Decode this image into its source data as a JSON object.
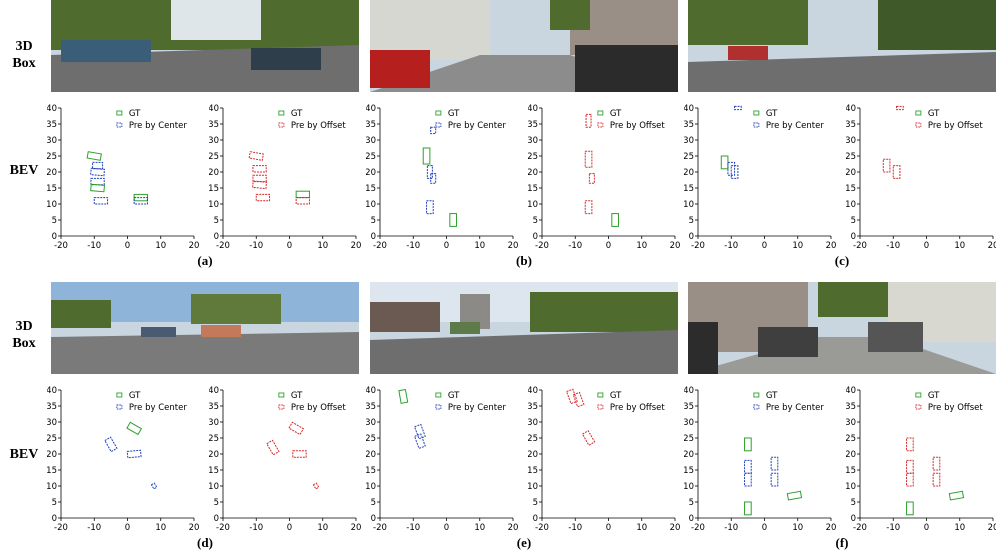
{
  "row_labels": {
    "box_line1": "3D",
    "box_line2": "Box",
    "bev": "BEV"
  },
  "legend": {
    "gt": "GT",
    "center": "Pre by Center",
    "offset": "Pre by Offset"
  },
  "colors": {
    "gt": "#2ca02c",
    "center": "#1f3fbf",
    "offset": "#d62728",
    "sky": "#c9d6df",
    "road": "#6e6e6e",
    "foliage": "#4f6b2e",
    "building": "#9a8f86"
  },
  "axes": {
    "xlim": [
      -20,
      20
    ],
    "ylim": [
      0,
      40
    ],
    "xticks": [
      -20,
      -10,
      0,
      10,
      20
    ],
    "yticks": [
      0,
      5,
      10,
      15,
      20,
      25,
      30,
      35,
      40
    ]
  },
  "panels": [
    {
      "caption": "(a)",
      "scene": "street-trees",
      "left": {
        "legend2": "center",
        "boxes": [
          [
            -10,
            25,
            4,
            2,
            10,
            "gt"
          ],
          [
            -9,
            22,
            3,
            2,
            0,
            "center"
          ],
          [
            -9,
            20,
            4,
            2,
            5,
            "center"
          ],
          [
            -9,
            17,
            4,
            2,
            0,
            "center"
          ],
          [
            -9,
            15,
            4,
            2,
            5,
            "gt"
          ],
          [
            -8,
            11,
            4,
            2,
            0,
            "center"
          ],
          [
            4,
            12,
            4,
            2,
            0,
            "gt"
          ],
          [
            4,
            11,
            4,
            2,
            0,
            "center"
          ]
        ]
      },
      "right": {
        "legend2": "offset",
        "boxes": [
          [
            -10,
            25,
            4,
            2,
            10,
            "offset"
          ],
          [
            -9,
            21,
            4,
            2,
            0,
            "offset"
          ],
          [
            -9,
            18,
            4,
            2,
            0,
            "offset"
          ],
          [
            -9,
            16,
            4,
            2,
            5,
            "offset"
          ],
          [
            -8,
            12,
            4,
            2,
            0,
            "offset"
          ],
          [
            4,
            13,
            4,
            2,
            0,
            "gt"
          ],
          [
            4,
            11,
            4,
            2,
            0,
            "offset"
          ]
        ]
      }
    },
    {
      "caption": "(b)",
      "scene": "residential",
      "left": {
        "legend2": "center",
        "boxes": [
          [
            -4,
            33,
            1.5,
            2,
            0,
            "center"
          ],
          [
            -6,
            25,
            2,
            5,
            0,
            "gt"
          ],
          [
            -5,
            20,
            1.5,
            4,
            0,
            "center"
          ],
          [
            -4,
            18,
            1.5,
            3,
            0,
            "center"
          ],
          [
            -5,
            9,
            2,
            4,
            0,
            "center"
          ],
          [
            2,
            5,
            2,
            4,
            0,
            "gt"
          ]
        ]
      },
      "right": {
        "legend2": "offset",
        "boxes": [
          [
            -6,
            36,
            1.5,
            4,
            0,
            "offset"
          ],
          [
            -6,
            24,
            2,
            5,
            0,
            "offset"
          ],
          [
            -5,
            18,
            1.5,
            3,
            0,
            "offset"
          ],
          [
            -6,
            9,
            2,
            4,
            0,
            "offset"
          ],
          [
            2,
            5,
            2,
            4,
            0,
            "gt"
          ]
        ]
      }
    },
    {
      "caption": "(c)",
      "scene": "boulevard",
      "left": {
        "legend2": "center",
        "boxes": [
          [
            -8,
            40,
            2,
            1,
            0,
            "center"
          ],
          [
            -12,
            23,
            2,
            4,
            0,
            "gt"
          ],
          [
            -10,
            21,
            2,
            4,
            0,
            "center"
          ],
          [
            -9,
            20,
            2,
            4,
            0,
            "center"
          ]
        ]
      },
      "right": {
        "legend2": "offset",
        "boxes": [
          [
            -8,
            40,
            2,
            1,
            0,
            "offset"
          ],
          [
            -12,
            22,
            2,
            4,
            0,
            "offset"
          ],
          [
            -9,
            20,
            2,
            4,
            0,
            "offset"
          ]
        ]
      }
    },
    {
      "caption": "(d)",
      "scene": "intersection",
      "left": {
        "legend2": "center",
        "boxes": [
          [
            -5,
            23,
            2,
            4,
            -30,
            "center"
          ],
          [
            2,
            28,
            2,
            4,
            -60,
            "gt"
          ],
          [
            2,
            20,
            4,
            2,
            -5,
            "center"
          ],
          [
            8,
            10,
            1,
            1.5,
            -30,
            "center"
          ]
        ]
      },
      "right": {
        "legend2": "offset",
        "boxes": [
          [
            -5,
            22,
            2,
            4,
            -30,
            "offset"
          ],
          [
            2,
            28,
            2,
            4,
            -60,
            "offset"
          ],
          [
            3,
            20,
            4,
            2,
            0,
            "offset"
          ],
          [
            8,
            10,
            1,
            1.5,
            -30,
            "offset"
          ]
        ]
      }
    },
    {
      "caption": "(e)",
      "scene": "industrial",
      "left": {
        "legend2": "center",
        "boxes": [
          [
            -13,
            38,
            2,
            4,
            -10,
            "gt"
          ],
          [
            -8,
            27,
            2,
            4,
            -20,
            "center"
          ],
          [
            -8,
            24,
            2,
            4,
            -20,
            "center"
          ]
        ]
      },
      "right": {
        "legend2": "offset",
        "boxes": [
          [
            -11,
            38,
            2,
            4,
            -20,
            "offset"
          ],
          [
            -9,
            37,
            2,
            4,
            -20,
            "offset"
          ],
          [
            -6,
            25,
            2,
            4,
            -30,
            "offset"
          ]
        ]
      }
    },
    {
      "caption": "(f)",
      "scene": "parked-street",
      "left": {
        "legend2": "center",
        "boxes": [
          [
            -5,
            23,
            2,
            4,
            0,
            "gt"
          ],
          [
            -5,
            16,
            2,
            4,
            0,
            "center"
          ],
          [
            -5,
            12,
            2,
            4,
            0,
            "center"
          ],
          [
            3,
            17,
            2,
            4,
            0,
            "center"
          ],
          [
            3,
            12,
            2,
            4,
            0,
            "center"
          ],
          [
            -5,
            3,
            2,
            4,
            0,
            "gt"
          ],
          [
            9,
            7,
            4,
            2,
            -10,
            "gt"
          ]
        ]
      },
      "right": {
        "legend2": "offset",
        "boxes": [
          [
            -5,
            23,
            2,
            4,
            0,
            "offset"
          ],
          [
            -5,
            16,
            2,
            4,
            0,
            "offset"
          ],
          [
            -5,
            12,
            2,
            4,
            0,
            "offset"
          ],
          [
            3,
            17,
            2,
            4,
            0,
            "offset"
          ],
          [
            3,
            12,
            2,
            4,
            0,
            "offset"
          ],
          [
            -5,
            3,
            2,
            4,
            0,
            "gt"
          ],
          [
            9,
            7,
            4,
            2,
            -10,
            "gt"
          ]
        ]
      }
    }
  ]
}
